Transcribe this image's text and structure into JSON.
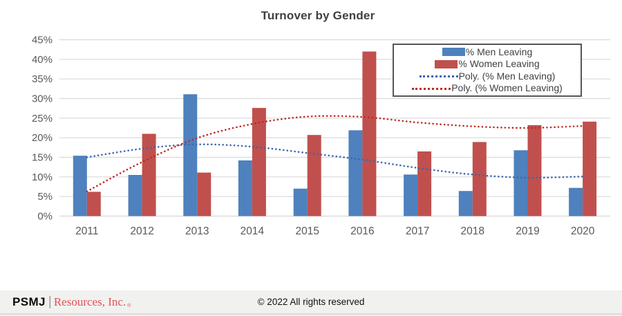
{
  "chart_data": {
    "type": "bar",
    "title": "Turnover by Gender",
    "categories": [
      "2011",
      "2012",
      "2013",
      "2014",
      "2015",
      "2016",
      "2017",
      "2018",
      "2019",
      "2020"
    ],
    "series": [
      {
        "name": "% Men Leaving",
        "type": "bar",
        "color": "#4E81BD",
        "values": [
          15.4,
          10.5,
          31.1,
          14.2,
          7.0,
          21.9,
          10.6,
          6.4,
          16.8,
          7.2
        ]
      },
      {
        "name": "% Women Leaving",
        "type": "bar",
        "color": "#C0504D",
        "values": [
          6.2,
          21.0,
          11.1,
          27.6,
          20.7,
          42.0,
          16.5,
          18.9,
          23.2,
          24.1
        ]
      },
      {
        "name": "Poly. (% Men Leaving)",
        "type": "dotted-line",
        "color": "#3A66B0",
        "values": [
          15.0,
          17.2,
          18.3,
          17.7,
          16.1,
          14.4,
          12.3,
          10.6,
          9.8,
          10.1
        ]
      },
      {
        "name": "Poly. (% Women Leaving)",
        "type": "dotted-line",
        "color": "#BE2A20",
        "values": [
          6.3,
          13.8,
          19.9,
          23.5,
          25.4,
          25.3,
          23.9,
          22.9,
          22.5,
          23.0
        ]
      }
    ],
    "ylim": [
      0,
      45
    ],
    "ytick_step": 5,
    "ytick_labels": [
      "0%",
      "5%",
      "10%",
      "15%",
      "20%",
      "25%",
      "30%",
      "35%",
      "40%",
      "45%"
    ],
    "grid": true,
    "gridline_color": "#d9d9d9",
    "legend_position": "top-right"
  },
  "footer": {
    "brand_psmj": "PSMJ",
    "brand_divider": "|",
    "brand_resources": "Resources, Inc.",
    "registered_mark": "®",
    "copyright": "© 2022 All rights reserved"
  }
}
